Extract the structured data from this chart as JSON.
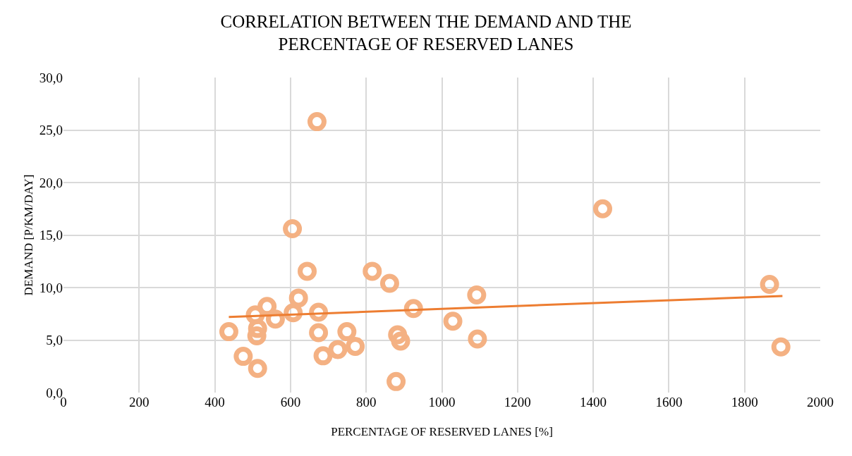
{
  "chart_data": {
    "type": "scatter",
    "title": "CORRELATION BETWEEN THE DEMAND AND THE\nPERCENTAGE OF RESERVED LANES",
    "xlabel": "PERCENTAGE OF RESERVED LANES [%]",
    "ylabel": "DEMAND [P/KM/DAY]",
    "xlim": [
      0,
      2000
    ],
    "xticks": [
      0,
      200,
      400,
      600,
      800,
      1000,
      1200,
      1400,
      1600,
      1800,
      2000
    ],
    "ylim": [
      0,
      30
    ],
    "yticks": [
      {
        "value": 0,
        "label": "0,0"
      },
      {
        "value": 5,
        "label": "5,0"
      },
      {
        "value": 10,
        "label": "10,0"
      },
      {
        "value": 15,
        "label": "15,0"
      },
      {
        "value": 20,
        "label": "20,0"
      },
      {
        "value": 25,
        "label": "25,0"
      },
      {
        "value": 30,
        "label": "30,0"
      }
    ],
    "grid": true,
    "legend": false,
    "series": [
      {
        "marker": "circle",
        "color": "#f4b183",
        "x": [
          437,
          475,
          507,
          513,
          511,
          513,
          538,
          560,
          605,
          607,
          621,
          644,
          670,
          674,
          674,
          686,
          725,
          749,
          771,
          816,
          862,
          883,
          891,
          879,
          925,
          1029,
          1092,
          1094,
          1425,
          1866,
          1896
        ],
        "values": [
          5.8,
          3.45,
          7.4,
          6.1,
          5.4,
          2.3,
          8.2,
          7.0,
          15.6,
          7.6,
          9.0,
          11.55,
          25.8,
          7.65,
          5.7,
          3.5,
          4.1,
          5.8,
          4.4,
          11.55,
          10.4,
          5.5,
          4.9,
          1.05,
          8.0,
          6.8,
          9.3,
          5.1,
          17.5,
          10.3,
          4.35
        ]
      },
      {
        "type": "line",
        "color": "#ed7d31",
        "x": [
          437,
          1900
        ],
        "values": [
          7.2,
          9.2
        ]
      }
    ]
  }
}
